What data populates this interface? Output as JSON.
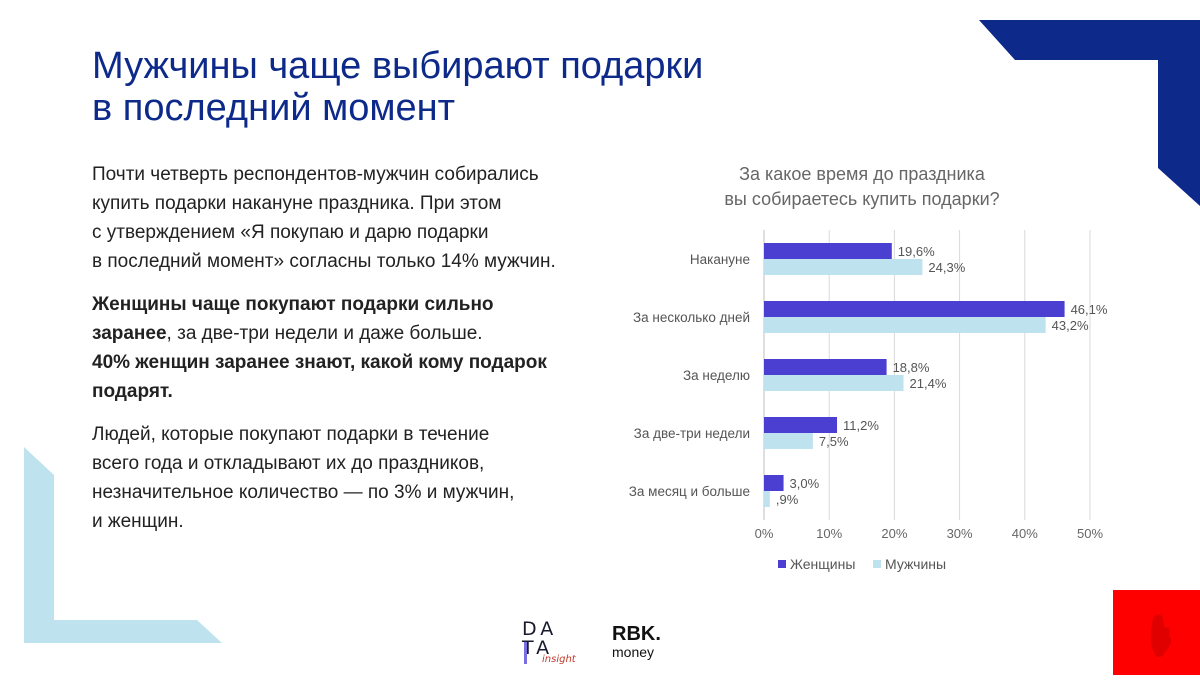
{
  "title": {
    "line1": "Мужчины чаще выбирают подарки",
    "line2": "в последний момент"
  },
  "paragraphs": {
    "p1": [
      "Почти четверть респондентов-мужчин собирались",
      "купить подарки накануне праздника. При этом",
      "с утверждением «Я покупаю и дарю подарки",
      "в последний момент» согласны только 14% мужчин."
    ],
    "p2": {
      "l1": "Женщины чаще покупают подарки сильно",
      "l2_bold": "заранее",
      "l2_rest": ", за две-три недели и даже больше.",
      "l3": "40% женщин заранее знают, какой кому подарок",
      "l4": "подарят."
    },
    "p3": [
      "Людей, которые покупают подарки в течение",
      "всего года и откладывают их до праздников,",
      "незначительное количество — по 3% и мужчин,",
      "и женщин."
    ]
  },
  "chart_data": {
    "type": "bar",
    "orientation": "horizontal",
    "title": [
      "За какое время до праздника",
      "вы собираетесь купить подарки?"
    ],
    "categories": [
      "Накануне",
      "За несколько дней",
      "За неделю",
      "За две-три недели",
      "За месяц и больше"
    ],
    "series": [
      {
        "name": "Женщины",
        "color": "#4a3fd0",
        "values": [
          19.6,
          46.1,
          18.8,
          11.2,
          3.0
        ],
        "labels": [
          "19,6%",
          "46,1%",
          "18,8%",
          "11,2%",
          "3,0%"
        ]
      },
      {
        "name": "Мужчины",
        "color": "#bfe3ee",
        "values": [
          24.3,
          43.2,
          21.4,
          7.5,
          0.9
        ],
        "labels": [
          "24,3%",
          "43,2%",
          "21,4%",
          "7,5%",
          ",9%"
        ]
      }
    ],
    "xlim": [
      0,
      50
    ],
    "xticks": [
      "0%",
      "10%",
      "20%",
      "30%",
      "40%",
      "50%"
    ],
    "grid": true,
    "legend": "bottom"
  },
  "logos": {
    "data_insight": {
      "line1": "DA",
      "line2": "TA",
      "sub": "insight"
    },
    "rbk": {
      "line1": "RBK.",
      "line2": "money"
    }
  },
  "colors": {
    "title": "#0d2a8a",
    "corner_dark": "#0d2a8a",
    "corner_light": "#bfe3ee",
    "accent_red": "#ff0000"
  }
}
